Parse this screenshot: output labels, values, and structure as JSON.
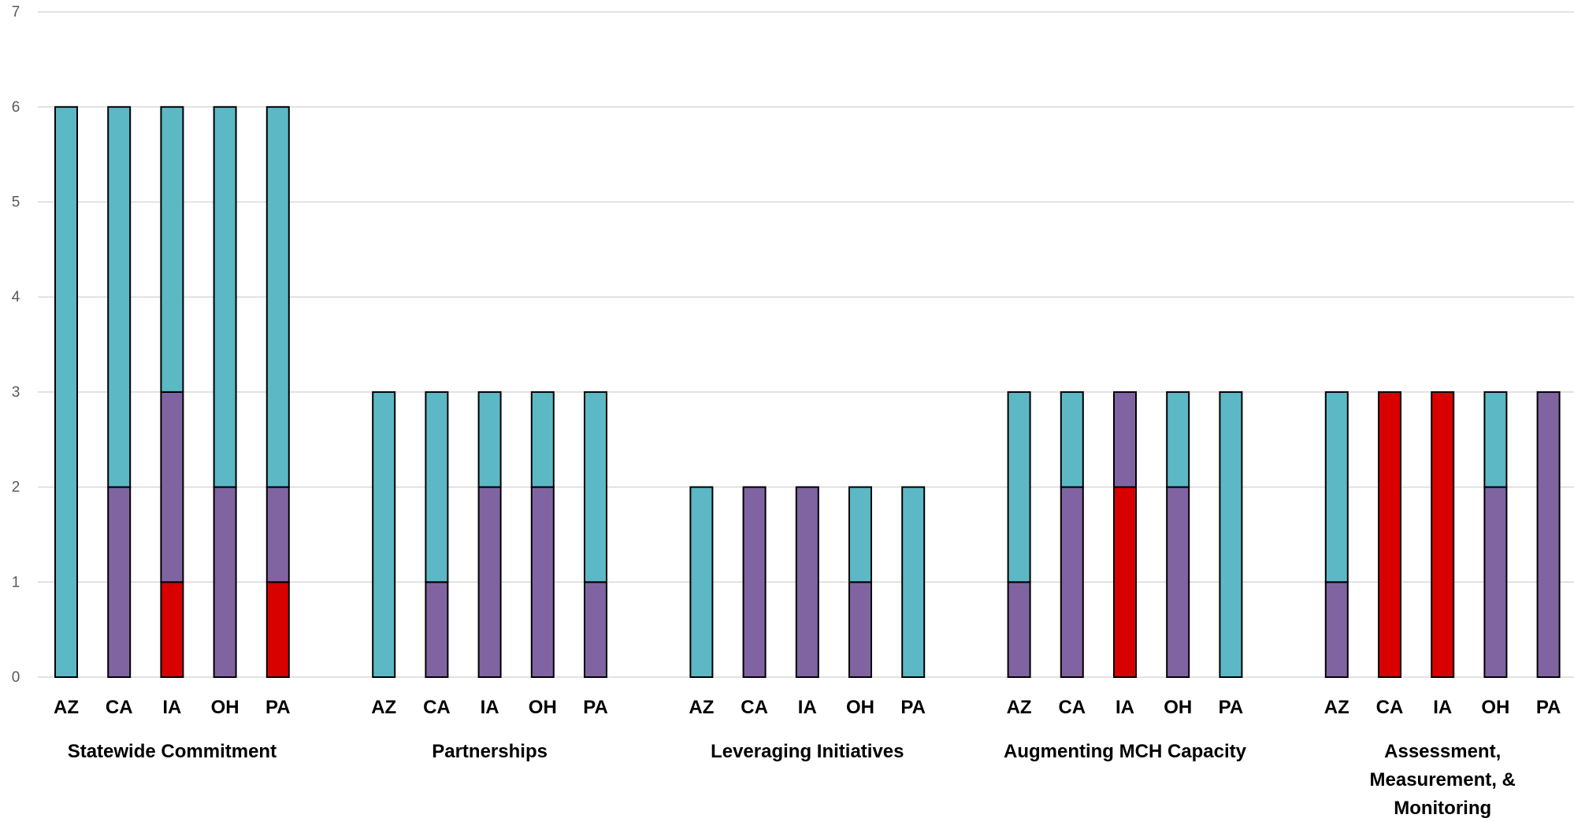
{
  "chart_data": {
    "type": "bar",
    "stacked": true,
    "ylim": [
      0,
      7
    ],
    "yticks": [
      0,
      1,
      2,
      3,
      4,
      5,
      6,
      7
    ],
    "grid": true,
    "legend": "none",
    "colors": {
      "red": "#d90000",
      "purple": "#8064a2",
      "teal": "#5cb8c5"
    },
    "groups": [
      {
        "label_lines": [
          "Statewide Commitment"
        ],
        "categories": [
          "AZ",
          "CA",
          "IA",
          "OH",
          "PA"
        ],
        "stacks": [
          {
            "red": 0,
            "purple": 0,
            "teal": 6
          },
          {
            "red": 0,
            "purple": 2,
            "teal": 4
          },
          {
            "red": 1,
            "purple": 2,
            "teal": 3
          },
          {
            "red": 0,
            "purple": 2,
            "teal": 4
          },
          {
            "red": 1,
            "purple": 1,
            "teal": 4
          }
        ]
      },
      {
        "label_lines": [
          "Partnerships"
        ],
        "categories": [
          "AZ",
          "CA",
          "IA",
          "OH",
          "PA"
        ],
        "stacks": [
          {
            "red": 0,
            "purple": 0,
            "teal": 3
          },
          {
            "red": 0,
            "purple": 1,
            "teal": 2
          },
          {
            "red": 0,
            "purple": 2,
            "teal": 1
          },
          {
            "red": 0,
            "purple": 2,
            "teal": 1
          },
          {
            "red": 0,
            "purple": 1,
            "teal": 2
          }
        ]
      },
      {
        "label_lines": [
          "Leveraging Initiatives"
        ],
        "categories": [
          "AZ",
          "CA",
          "IA",
          "OH",
          "PA"
        ],
        "stacks": [
          {
            "red": 0,
            "purple": 0,
            "teal": 2
          },
          {
            "red": 0,
            "purple": 2,
            "teal": 0
          },
          {
            "red": 0,
            "purple": 2,
            "teal": 0
          },
          {
            "red": 0,
            "purple": 1,
            "teal": 1
          },
          {
            "red": 0,
            "purple": 0,
            "teal": 2
          }
        ]
      },
      {
        "label_lines": [
          "Augmenting MCH Capacity"
        ],
        "categories": [
          "AZ",
          "CA",
          "IA",
          "OH",
          "PA"
        ],
        "stacks": [
          {
            "red": 0,
            "purple": 1,
            "teal": 2
          },
          {
            "red": 0,
            "purple": 2,
            "teal": 1
          },
          {
            "red": 2,
            "purple": 1,
            "teal": 0
          },
          {
            "red": 0,
            "purple": 2,
            "teal": 1
          },
          {
            "red": 0,
            "purple": 0,
            "teal": 3
          }
        ]
      },
      {
        "label_lines": [
          "Assessment,",
          "Measurement, &",
          "Monitoring"
        ],
        "categories": [
          "AZ",
          "CA",
          "IA",
          "OH",
          "PA"
        ],
        "stacks": [
          {
            "red": 0,
            "purple": 1,
            "teal": 2
          },
          {
            "red": 3,
            "purple": 0,
            "teal": 0
          },
          {
            "red": 3,
            "purple": 0,
            "teal": 0
          },
          {
            "red": 0,
            "purple": 2,
            "teal": 1
          },
          {
            "red": 0,
            "purple": 3,
            "teal": 0
          }
        ]
      }
    ]
  }
}
